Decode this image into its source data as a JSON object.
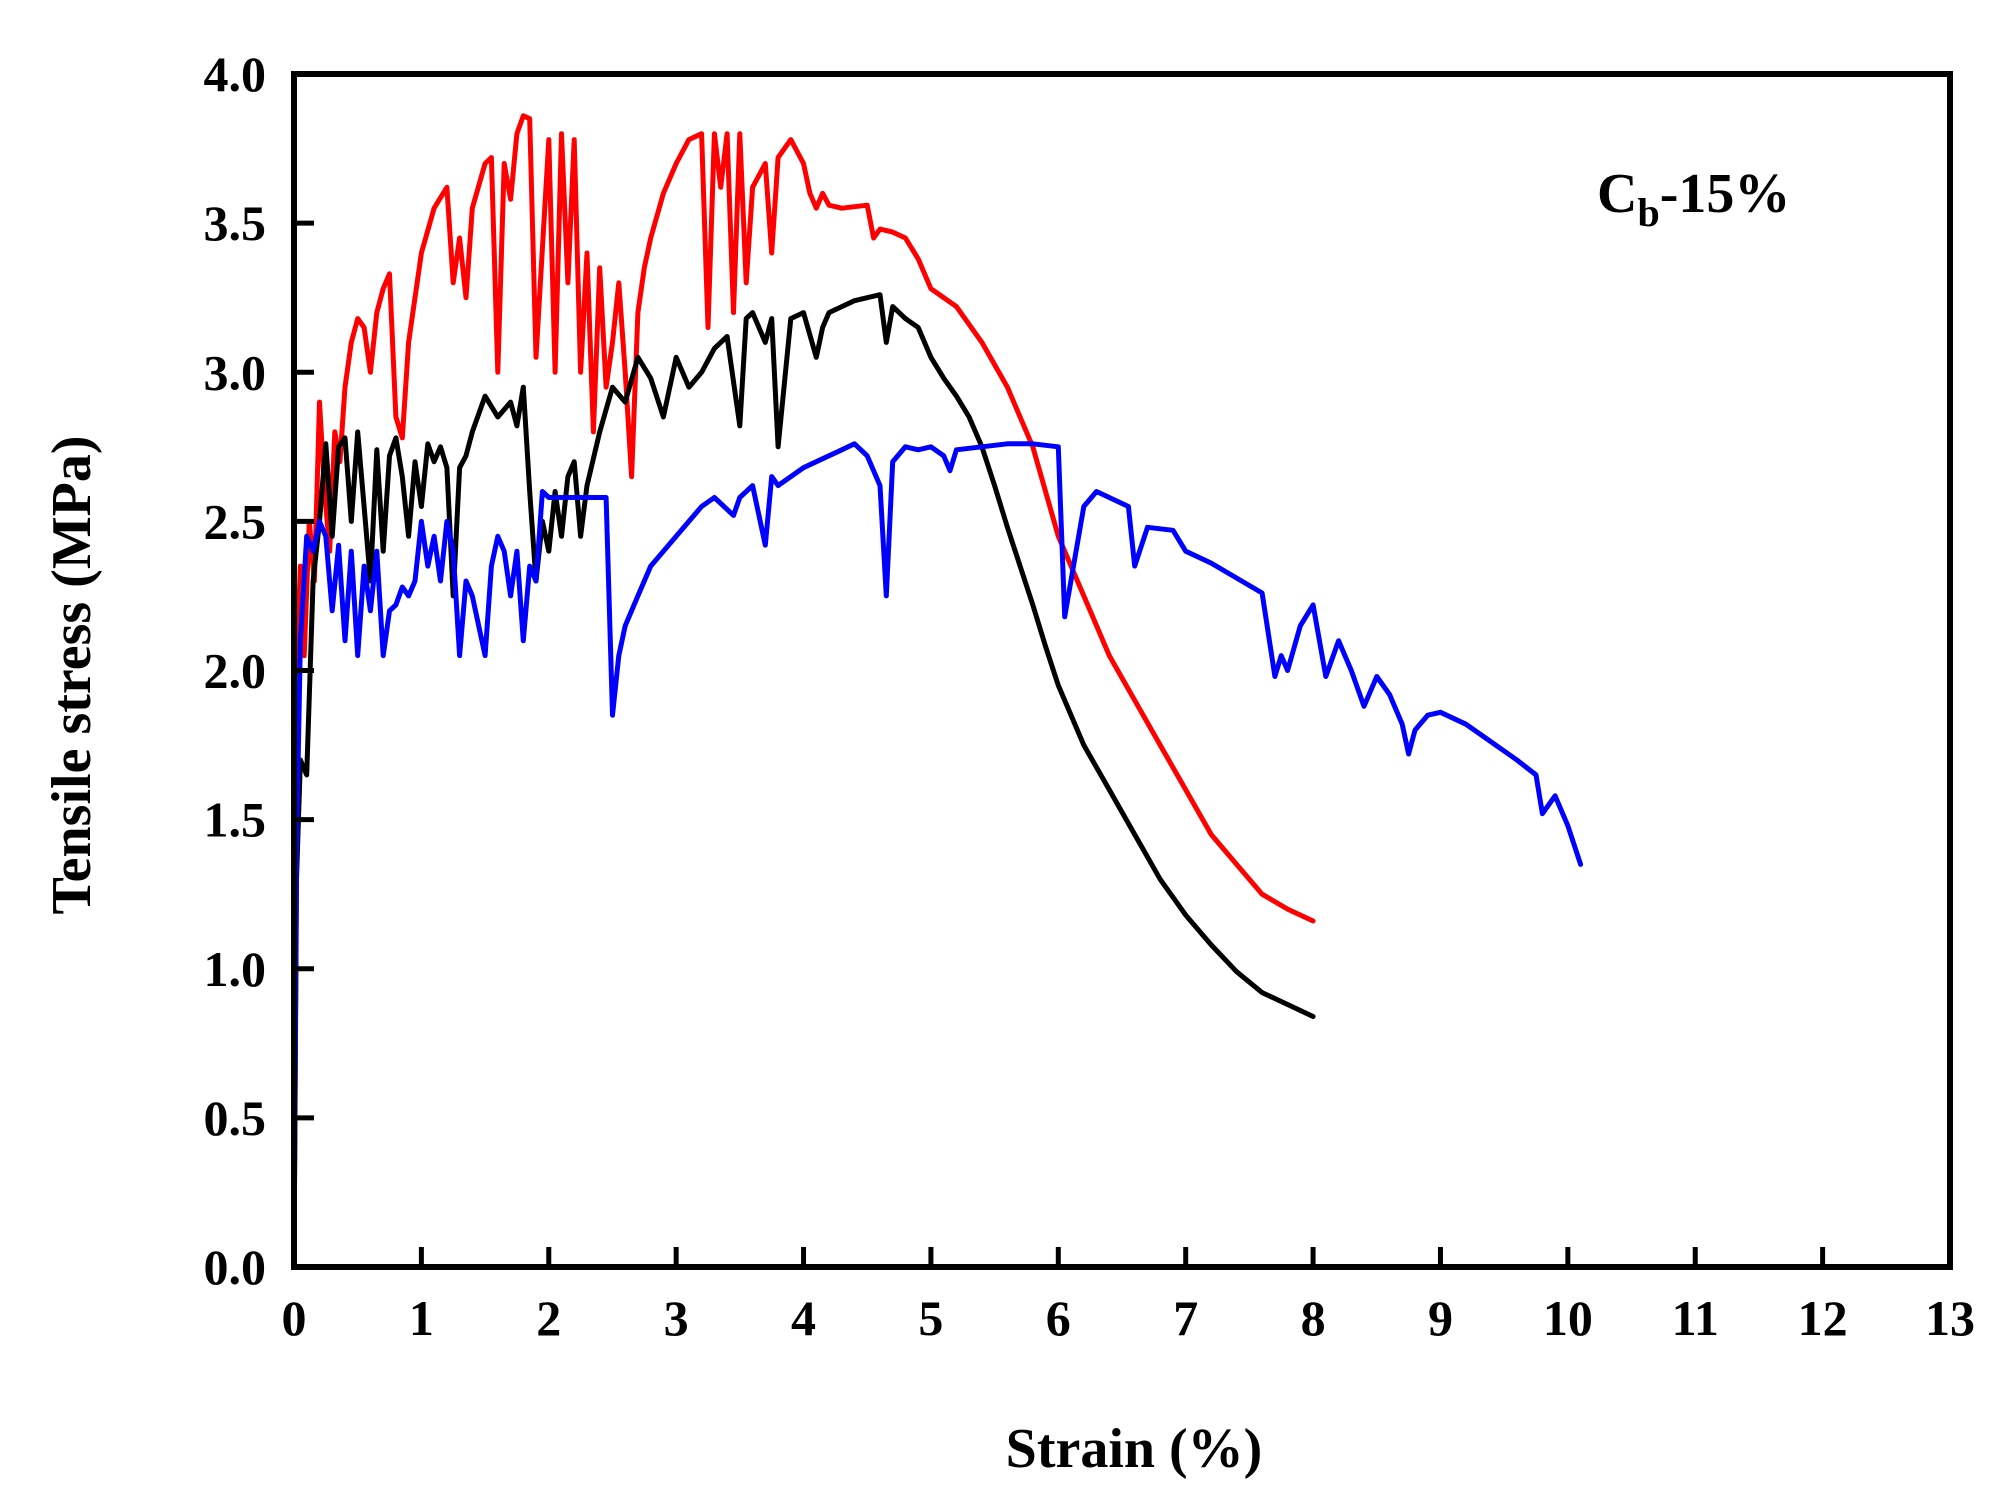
{
  "chart_data": {
    "type": "line",
    "title": "",
    "xlabel": "Strain (%)",
    "ylabel": "Tensile stress (MPa)",
    "xlim": [
      0,
      13
    ],
    "ylim": [
      0,
      4.0
    ],
    "x_ticks": [
      0,
      1,
      2,
      3,
      4,
      5,
      6,
      7,
      8,
      9,
      10,
      11,
      12,
      13
    ],
    "x_tick_labels": [
      "0",
      "1",
      "2",
      "3",
      "4",
      "5",
      "6",
      "7",
      "8",
      "9",
      "10",
      "11",
      "12",
      "13"
    ],
    "y_ticks": [
      0,
      0.5,
      1.0,
      1.5,
      2.0,
      2.5,
      3.0,
      3.5,
      4.0
    ],
    "y_tick_labels": [
      "0.0",
      "0.5",
      "1.0",
      "1.5",
      "2.0",
      "2.5",
      "3.0",
      "3.5",
      "4.0"
    ],
    "grid": false,
    "legend": "none",
    "annotation": {
      "main": "C",
      "subscript": "b",
      "suffix": "-15%"
    },
    "series": [
      {
        "color": "#ff0000",
        "x": [
          0,
          0.02,
          0.05,
          0.08,
          0.12,
          0.16,
          0.2,
          0.24,
          0.28,
          0.32,
          0.36,
          0.4,
          0.45,
          0.5,
          0.55,
          0.6,
          0.65,
          0.7,
          0.75,
          0.8,
          0.85,
          0.9,
          0.95,
          1.0,
          1.1,
          1.2,
          1.25,
          1.3,
          1.35,
          1.4,
          1.5,
          1.55,
          1.6,
          1.65,
          1.7,
          1.75,
          1.8,
          1.85,
          1.9,
          2.0,
          2.05,
          2.1,
          2.15,
          2.2,
          2.25,
          2.3,
          2.35,
          2.4,
          2.45,
          2.5,
          2.55,
          2.6,
          2.65,
          2.7,
          2.75,
          2.8,
          2.9,
          3.0,
          3.1,
          3.2,
          3.25,
          3.3,
          3.35,
          3.4,
          3.45,
          3.5,
          3.55,
          3.6,
          3.7,
          3.75,
          3.8,
          3.9,
          4.0,
          4.05,
          4.1,
          4.15,
          4.2,
          4.3,
          4.5,
          4.55,
          4.6,
          4.7,
          4.8,
          4.9,
          5.0,
          5.2,
          5.4,
          5.6,
          5.8,
          6.0,
          6.2,
          6.4,
          6.6,
          6.8,
          7.0,
          7.2,
          7.4,
          7.6,
          7.8,
          8.0
        ],
        "y": [
          1.7,
          2.0,
          2.35,
          2.05,
          2.5,
          2.3,
          2.9,
          2.6,
          2.4,
          2.8,
          2.7,
          2.95,
          3.1,
          3.18,
          3.15,
          3.0,
          3.2,
          3.28,
          3.33,
          2.85,
          2.78,
          3.1,
          3.25,
          3.4,
          3.55,
          3.62,
          3.3,
          3.45,
          3.25,
          3.55,
          3.7,
          3.72,
          3.0,
          3.7,
          3.58,
          3.8,
          3.86,
          3.85,
          3.05,
          3.78,
          3.0,
          3.8,
          3.3,
          3.78,
          3.0,
          3.4,
          2.8,
          3.35,
          2.95,
          3.1,
          3.3,
          3.0,
          2.65,
          3.2,
          3.35,
          3.45,
          3.6,
          3.7,
          3.78,
          3.8,
          3.15,
          3.8,
          3.62,
          3.8,
          3.2,
          3.8,
          3.3,
          3.62,
          3.7,
          3.4,
          3.72,
          3.78,
          3.7,
          3.6,
          3.55,
          3.6,
          3.56,
          3.55,
          3.56,
          3.45,
          3.48,
          3.47,
          3.45,
          3.38,
          3.28,
          3.22,
          3.1,
          2.95,
          2.75,
          2.45,
          2.25,
          2.05,
          1.9,
          1.75,
          1.6,
          1.45,
          1.35,
          1.25,
          1.2,
          1.16
        ]
      },
      {
        "color": "#000000",
        "x": [
          0,
          0.02,
          0.05,
          0.1,
          0.15,
          0.2,
          0.25,
          0.3,
          0.35,
          0.4,
          0.45,
          0.5,
          0.55,
          0.6,
          0.65,
          0.7,
          0.75,
          0.8,
          0.85,
          0.9,
          0.95,
          1.0,
          1.05,
          1.1,
          1.15,
          1.2,
          1.25,
          1.3,
          1.35,
          1.4,
          1.5,
          1.6,
          1.7,
          1.75,
          1.8,
          1.85,
          1.9,
          1.95,
          2.0,
          2.05,
          2.1,
          2.15,
          2.2,
          2.25,
          2.3,
          2.4,
          2.5,
          2.6,
          2.7,
          2.8,
          2.9,
          3.0,
          3.1,
          3.2,
          3.3,
          3.4,
          3.5,
          3.55,
          3.6,
          3.7,
          3.75,
          3.8,
          3.9,
          4.0,
          4.1,
          4.15,
          4.2,
          4.3,
          4.4,
          4.5,
          4.6,
          4.65,
          4.7,
          4.75,
          4.8,
          4.9,
          5.0,
          5.1,
          5.2,
          5.3,
          5.4,
          5.5,
          5.6,
          5.7,
          5.8,
          5.9,
          6.0,
          6.2,
          6.4,
          6.6,
          6.8,
          7.0,
          7.2,
          7.4,
          7.6,
          7.8,
          8.0
        ],
        "y": [
          0.0,
          1.3,
          1.7,
          1.65,
          2.3,
          2.5,
          2.76,
          2.45,
          2.75,
          2.78,
          2.5,
          2.8,
          2.55,
          2.3,
          2.74,
          2.4,
          2.72,
          2.78,
          2.65,
          2.45,
          2.7,
          2.55,
          2.76,
          2.7,
          2.75,
          2.68,
          2.25,
          2.68,
          2.72,
          2.8,
          2.92,
          2.85,
          2.9,
          2.82,
          2.95,
          2.6,
          2.3,
          2.5,
          2.4,
          2.6,
          2.45,
          2.65,
          2.7,
          2.45,
          2.62,
          2.8,
          2.95,
          2.9,
          3.05,
          2.98,
          2.85,
          3.05,
          2.95,
          3.0,
          3.08,
          3.12,
          2.82,
          3.18,
          3.2,
          3.1,
          3.18,
          2.75,
          3.18,
          3.2,
          3.05,
          3.15,
          3.2,
          3.22,
          3.24,
          3.25,
          3.26,
          3.1,
          3.22,
          3.2,
          3.18,
          3.15,
          3.05,
          2.98,
          2.92,
          2.85,
          2.75,
          2.62,
          2.48,
          2.35,
          2.22,
          2.08,
          1.95,
          1.75,
          1.6,
          1.45,
          1.3,
          1.18,
          1.08,
          0.99,
          0.92,
          0.88,
          0.84
        ]
      },
      {
        "color": "#0000ff",
        "x": [
          0,
          0.02,
          0.05,
          0.1,
          0.15,
          0.2,
          0.25,
          0.3,
          0.35,
          0.4,
          0.45,
          0.5,
          0.55,
          0.6,
          0.65,
          0.7,
          0.75,
          0.8,
          0.85,
          0.9,
          0.95,
          1.0,
          1.05,
          1.1,
          1.15,
          1.2,
          1.25,
          1.3,
          1.35,
          1.4,
          1.45,
          1.5,
          1.55,
          1.6,
          1.65,
          1.7,
          1.75,
          1.8,
          1.85,
          1.9,
          1.95,
          2.0,
          2.1,
          2.2,
          2.3,
          2.45,
          2.5,
          2.55,
          2.6,
          2.7,
          2.8,
          3.0,
          3.2,
          3.3,
          3.45,
          3.5,
          3.6,
          3.7,
          3.75,
          3.8,
          4.0,
          4.1,
          4.3,
          4.4,
          4.5,
          4.6,
          4.65,
          4.7,
          4.8,
          4.9,
          5.0,
          5.1,
          5.15,
          5.2,
          5.4,
          5.6,
          5.8,
          6.0,
          6.05,
          6.2,
          6.3,
          6.5,
          6.55,
          6.6,
          6.7,
          6.9,
          7.0,
          7.2,
          7.6,
          7.7,
          7.75,
          7.8,
          7.9,
          8.0,
          8.1,
          8.2,
          8.25,
          8.3,
          8.4,
          8.5,
          8.6,
          8.7,
          8.75,
          8.8,
          8.9,
          9.0,
          9.2,
          9.4,
          9.6,
          9.75,
          9.8,
          9.9,
          10.0,
          10.1
        ],
        "y": [
          0.0,
          1.4,
          2.1,
          2.45,
          2.4,
          2.5,
          2.45,
          2.2,
          2.42,
          2.1,
          2.4,
          2.05,
          2.35,
          2.2,
          2.4,
          2.05,
          2.2,
          2.22,
          2.28,
          2.25,
          2.3,
          2.5,
          2.35,
          2.45,
          2.3,
          2.5,
          2.4,
          2.05,
          2.3,
          2.25,
          2.15,
          2.05,
          2.35,
          2.45,
          2.4,
          2.25,
          2.4,
          2.1,
          2.35,
          2.3,
          2.6,
          2.58,
          2.58,
          2.58,
          2.58,
          2.58,
          1.85,
          2.05,
          2.15,
          2.25,
          2.35,
          2.45,
          2.55,
          2.58,
          2.52,
          2.58,
          2.62,
          2.42,
          2.65,
          2.62,
          2.68,
          2.7,
          2.74,
          2.76,
          2.72,
          2.62,
          2.25,
          2.7,
          2.75,
          2.74,
          2.75,
          2.72,
          2.67,
          2.74,
          2.75,
          2.76,
          2.76,
          2.75,
          2.18,
          2.55,
          2.6,
          2.56,
          2.55,
          2.35,
          2.48,
          2.47,
          2.4,
          2.36,
          2.26,
          1.98,
          2.05,
          2.0,
          2.15,
          2.22,
          1.98,
          2.1,
          2.05,
          2.0,
          1.88,
          1.98,
          1.92,
          1.82,
          1.72,
          1.8,
          1.85,
          1.86,
          1.82,
          1.76,
          1.7,
          1.65,
          1.52,
          1.58,
          1.48,
          1.35
        ]
      }
    ]
  }
}
